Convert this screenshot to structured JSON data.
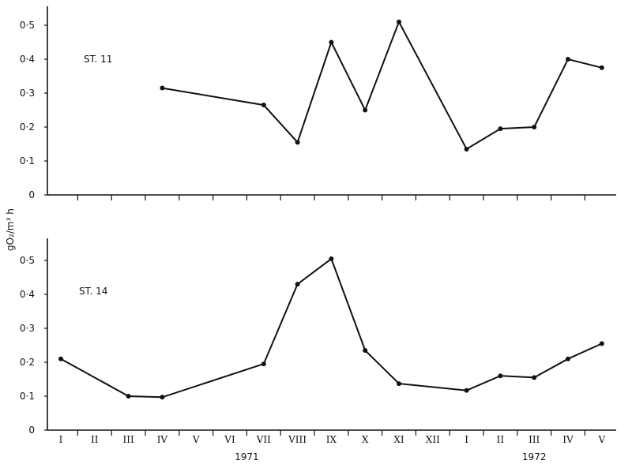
{
  "chart_data": [
    {
      "type": "line",
      "title": "ST. 11",
      "ylabel": "gO₂/m³ h",
      "ylim": [
        0,
        0.55
      ],
      "yticks": [
        0,
        0.1,
        0.2,
        0.3,
        0.4,
        0.5
      ],
      "ytick_labels": [
        "0",
        "0·1",
        "0·2",
        "0·3",
        "0·4",
        "0·5"
      ],
      "grid": false,
      "x": [
        "IV",
        "VII",
        "VIII",
        "IX",
        "X",
        "XI",
        "I",
        "II",
        "III",
        "IV",
        "V"
      ],
      "x_index": [
        3,
        6,
        7,
        8,
        9,
        10,
        12,
        13,
        14,
        15,
        16
      ],
      "values": [
        0.315,
        0.265,
        0.155,
        0.45,
        0.25,
        0.51,
        0.135,
        0.195,
        0.2,
        0.4,
        0.375
      ]
    },
    {
      "type": "line",
      "title": "ST. 14",
      "ylabel": "gO₂/m³ h",
      "ylim": [
        0,
        0.55
      ],
      "yticks": [
        0,
        0.1,
        0.2,
        0.3,
        0.4,
        0.5
      ],
      "ytick_labels": [
        "0",
        "0·1",
        "0·2",
        "0·3",
        "0·4",
        "0·5"
      ],
      "grid": false,
      "x": [
        "I",
        "III",
        "IV",
        "VII",
        "VIII",
        "IX",
        "X",
        "XI",
        "I",
        "II",
        "III",
        "IV",
        "V"
      ],
      "x_index": [
        0,
        2,
        3,
        6,
        7,
        8,
        9,
        10,
        12,
        13,
        14,
        15,
        16
      ],
      "values": [
        0.21,
        0.1,
        0.097,
        0.195,
        0.43,
        0.505,
        0.235,
        0.137,
        0.117,
        0.16,
        0.155,
        0.21,
        0.255
      ]
    }
  ],
  "shared_x_axis": {
    "month_labels": [
      "I",
      "II",
      "III",
      "IV",
      "V",
      "VI",
      "VII",
      "VIII",
      "IX",
      "X",
      "XI",
      "XII",
      "I",
      "II",
      "III",
      "IV",
      "V"
    ],
    "year_labels": [
      "1971",
      "1972"
    ],
    "year_anchor_index": [
      5.5,
      14
    ]
  },
  "ylabel": "gO₂/m³ h"
}
